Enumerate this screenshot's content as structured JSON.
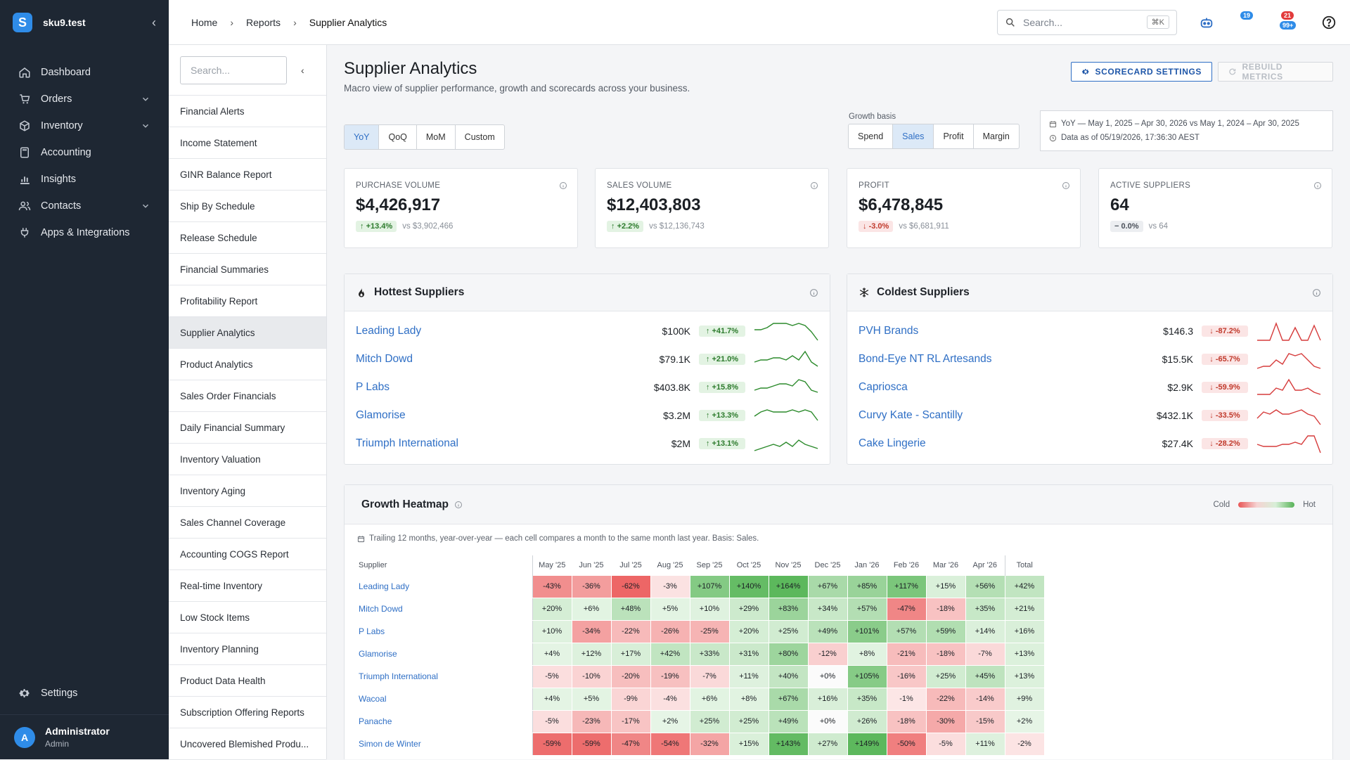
{
  "org": {
    "name": "sku9.test",
    "logo": "S"
  },
  "nav": [
    {
      "label": "Dashboard",
      "icon": "home-icon",
      "chevron": false
    },
    {
      "label": "Orders",
      "icon": "cart-icon",
      "chevron": true
    },
    {
      "label": "Inventory",
      "icon": "box-icon",
      "chevron": true
    },
    {
      "label": "Accounting",
      "icon": "calculator-icon",
      "chevron": false
    },
    {
      "label": "Insights",
      "icon": "bar-chart-icon",
      "chevron": false
    },
    {
      "label": "Contacts",
      "icon": "people-icon",
      "chevron": true
    },
    {
      "label": "Apps & Integrations",
      "icon": "plug-icon",
      "chevron": false
    }
  ],
  "settings": {
    "label": "Settings"
  },
  "user": {
    "initial": "A",
    "name": "Administrator",
    "role": "Admin"
  },
  "breadcrumb": [
    "Home",
    "Reports",
    "Supplier Analytics"
  ],
  "topsearch": {
    "placeholder": "Search...",
    "shortcut": "⌘K"
  },
  "badges": {
    "updates": "19",
    "alerts_top": "21",
    "alerts_bottom": "99+"
  },
  "reports": {
    "search_placeholder": "Search...",
    "items": [
      "Financial Alerts",
      "Income Statement",
      "GINR Balance Report",
      "Ship By Schedule",
      "Release Schedule",
      "Financial Summaries",
      "Profitability Report",
      "Supplier Analytics",
      "Product Analytics",
      "Sales Order Financials",
      "Daily Financial Summary",
      "Inventory Valuation",
      "Inventory Aging",
      "Sales Channel Coverage",
      "Accounting COGS Report",
      "Real-time Inventory",
      "Low Stock Items",
      "Inventory Planning",
      "Product Data Health",
      "Subscription Offering Reports",
      "Uncovered Blemished Produ..."
    ],
    "active_index": 7
  },
  "page": {
    "title": "Supplier Analytics",
    "subtitle": "Macro view of supplier performance, growth and scorecards across your business.",
    "scorecard_btn": "SCORECARD SETTINGS",
    "rebuild_btn": "REBUILD METRICS"
  },
  "period": {
    "options": [
      "YoY",
      "QoQ",
      "MoM",
      "Custom"
    ],
    "selected": "YoY"
  },
  "basis": {
    "label": "Growth basis",
    "options": [
      "Spend",
      "Sales",
      "Profit",
      "Margin"
    ],
    "selected": "Sales"
  },
  "range": {
    "text": "YoY — May 1, 2025 – Apr 30, 2026 vs May 1, 2024 – Apr 30, 2025",
    "asof": "Data as of 05/19/2026, 17:36:30 AEST"
  },
  "kpis": [
    {
      "label": "PURCHASE VOLUME",
      "value": "$4,426,917",
      "change": "+13.4%",
      "dir": "up",
      "vs": "vs $3,902,466"
    },
    {
      "label": "SALES VOLUME",
      "value": "$12,403,803",
      "change": "+2.2%",
      "dir": "up",
      "vs": "vs $12,136,743"
    },
    {
      "label": "PROFIT",
      "value": "$6,478,845",
      "change": "-3.0%",
      "dir": "down",
      "vs": "vs $6,681,911"
    },
    {
      "label": "ACTIVE SUPPLIERS",
      "value": "64",
      "change": "0.0%",
      "dir": "flat",
      "vs": "vs 64"
    }
  ],
  "hottest": {
    "title": "Hottest Suppliers",
    "rows": [
      {
        "name": "Leading Lady",
        "amount": "$100K",
        "change": "+41.7%",
        "spark": [
          4,
          4,
          3,
          1,
          1,
          1,
          2,
          1,
          2,
          5,
          9
        ]
      },
      {
        "name": "Mitch Dowd",
        "amount": "$79.1K",
        "change": "+21.0%",
        "spark": [
          6,
          5,
          5,
          4,
          4,
          5,
          3,
          5,
          1,
          6,
          8
        ]
      },
      {
        "name": "P Labs",
        "amount": "$403.8K",
        "change": "+15.8%",
        "spark": [
          6,
          5,
          5,
          4,
          3,
          3,
          4,
          1,
          2,
          6,
          7
        ]
      },
      {
        "name": "Glamorise",
        "amount": "$3.2M",
        "change": "+13.3%",
        "spark": [
          5,
          3,
          2,
          3,
          3,
          3,
          2,
          3,
          2,
          3,
          7
        ]
      },
      {
        "name": "Triumph International",
        "amount": "$2M",
        "change": "+13.1%",
        "spark": [
          8,
          7,
          6,
          5,
          6,
          4,
          6,
          3,
          5,
          6,
          7
        ]
      }
    ]
  },
  "coldest": {
    "title": "Coldest Suppliers",
    "rows": [
      {
        "name": "PVH Brands",
        "amount": "$146.3",
        "change": "-87.2%",
        "spark": [
          9,
          9,
          9,
          1,
          9,
          9,
          3,
          9,
          9,
          2,
          9
        ]
      },
      {
        "name": "Bond-Eye NT RL Artesands",
        "amount": "$15.5K",
        "change": "-65.7%",
        "spark": [
          9,
          8,
          8,
          5,
          7,
          2,
          3,
          2,
          5,
          8,
          9
        ]
      },
      {
        "name": "Capriosca",
        "amount": "$2.9K",
        "change": "-59.9%",
        "spark": [
          8,
          8,
          8,
          5,
          6,
          1,
          6,
          6,
          5,
          7,
          8
        ]
      },
      {
        "name": "Curvy Kate - Scantilly",
        "amount": "$432.1K",
        "change": "-33.5%",
        "spark": [
          6,
          3,
          4,
          2,
          4,
          4,
          3,
          2,
          4,
          5,
          9
        ]
      },
      {
        "name": "Cake Lingerie",
        "amount": "$27.4K",
        "change": "-28.2%",
        "spark": [
          5,
          6,
          6,
          6,
          5,
          5,
          4,
          5,
          1,
          1,
          9
        ]
      }
    ]
  },
  "heatmap": {
    "title": "Growth Heatmap",
    "legend_cold": "Cold",
    "legend_hot": "Hot",
    "note": "Trailing 12 months, year-over-year — each cell compares a month to the same month last year. Basis: Sales.",
    "supplier_header": "Supplier",
    "months": [
      "May '25",
      "Jun '25",
      "Jul '25",
      "Aug '25",
      "Sep '25",
      "Oct '25",
      "Nov '25",
      "Dec '25",
      "Jan '26",
      "Feb '26",
      "Mar '26",
      "Apr '26"
    ],
    "total_header": "Total",
    "rows": [
      {
        "name": "Leading Lady",
        "cells": [
          "-43%",
          "-36%",
          "-62%",
          "-3%",
          "+107%",
          "+140%",
          "+164%",
          "+67%",
          "+85%",
          "+117%",
          "+15%",
          "+56%"
        ],
        "total": "+42%"
      },
      {
        "name": "Mitch Dowd",
        "cells": [
          "+20%",
          "+6%",
          "+48%",
          "+5%",
          "+10%",
          "+29%",
          "+83%",
          "+34%",
          "+57%",
          "-47%",
          "-18%",
          "+35%"
        ],
        "total": "+21%"
      },
      {
        "name": "P Labs",
        "cells": [
          "+10%",
          "-34%",
          "-22%",
          "-26%",
          "-25%",
          "+20%",
          "+25%",
          "+49%",
          "+101%",
          "+57%",
          "+59%",
          "+14%"
        ],
        "total": "+16%"
      },
      {
        "name": "Glamorise",
        "cells": [
          "+4%",
          "+12%",
          "+17%",
          "+42%",
          "+33%",
          "+31%",
          "+80%",
          "-12%",
          "+8%",
          "-21%",
          "-18%",
          "-7%"
        ],
        "total": "+13%"
      },
      {
        "name": "Triumph International",
        "cells": [
          "-5%",
          "-10%",
          "-20%",
          "-19%",
          "-7%",
          "+11%",
          "+40%",
          "+0%",
          "+105%",
          "-16%",
          "+25%",
          "+45%"
        ],
        "total": "+13%"
      },
      {
        "name": "Wacoal",
        "cells": [
          "+4%",
          "+5%",
          "-9%",
          "-4%",
          "+6%",
          "+8%",
          "+67%",
          "+16%",
          "+35%",
          "-1%",
          "-22%",
          "-14%"
        ],
        "total": "+9%"
      },
      {
        "name": "Panache",
        "cells": [
          "-5%",
          "-23%",
          "-17%",
          "+2%",
          "+25%",
          "+25%",
          "+49%",
          "+0%",
          "+26%",
          "-18%",
          "-30%",
          "-15%"
        ],
        "total": "+2%"
      },
      {
        "name": "Simon de Winter",
        "cells": [
          "-59%",
          "-59%",
          "-47%",
          "-54%",
          "-32%",
          "+15%",
          "+143%",
          "+27%",
          "+149%",
          "-50%",
          "-5%",
          "+11%"
        ],
        "total": "-2%"
      }
    ]
  }
}
